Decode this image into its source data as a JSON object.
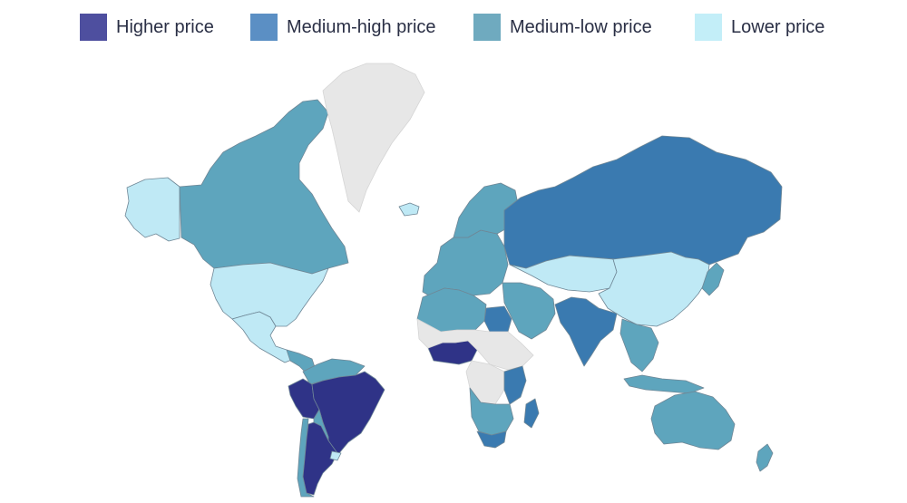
{
  "legend": [
    {
      "label": "Higher price",
      "color": "#4e4f9f"
    },
    {
      "label": "Medium-high price",
      "color": "#5b8fc4"
    },
    {
      "label": "Medium-low price",
      "color": "#6faabf"
    },
    {
      "label": "Lower price",
      "color": "#c3eef8"
    }
  ],
  "categories": {
    "higher": "#2f3387",
    "medium_high": "#3a7ab0",
    "medium_low": "#5ea5bd",
    "lower": "#bfe9f5",
    "no_data": "#e7e7e7"
  },
  "regions": [
    {
      "name": "Alaska",
      "category": "lower"
    },
    {
      "name": "Canada",
      "category": "medium_low"
    },
    {
      "name": "Greenland",
      "category": "no_data"
    },
    {
      "name": "United States",
      "category": "lower"
    },
    {
      "name": "Mexico",
      "category": "lower"
    },
    {
      "name": "Central America",
      "category": "medium_low"
    },
    {
      "name": "Colombia / Venezuela",
      "category": "medium_low"
    },
    {
      "name": "Peru",
      "category": "higher"
    },
    {
      "name": "Brazil",
      "category": "higher"
    },
    {
      "name": "Bolivia / Paraguay",
      "category": "medium_low"
    },
    {
      "name": "Chile",
      "category": "medium_low"
    },
    {
      "name": "Argentina",
      "category": "higher"
    },
    {
      "name": "Uruguay",
      "category": "lower"
    },
    {
      "name": "Iceland",
      "category": "lower"
    },
    {
      "name": "Europe",
      "category": "medium_low"
    },
    {
      "name": "Scandinavia",
      "category": "medium_low"
    },
    {
      "name": "Russia",
      "category": "medium_high"
    },
    {
      "name": "Kazakhstan / Central Asia",
      "category": "lower"
    },
    {
      "name": "China / Mongolia",
      "category": "lower"
    },
    {
      "name": "Middle East",
      "category": "medium_low"
    },
    {
      "name": "Egypt",
      "category": "medium_high"
    },
    {
      "name": "India",
      "category": "medium_high"
    },
    {
      "name": "Southeast Asia",
      "category": "medium_low"
    },
    {
      "name": "Japan",
      "category": "medium_low"
    },
    {
      "name": "Indonesia",
      "category": "medium_low"
    },
    {
      "name": "Australia",
      "category": "medium_low"
    },
    {
      "name": "New Zealand",
      "category": "medium_low"
    },
    {
      "name": "North Africa",
      "category": "medium_low"
    },
    {
      "name": "Nigeria",
      "category": "higher"
    },
    {
      "name": "Sahel / Horn",
      "category": "no_data"
    },
    {
      "name": "Central Africa",
      "category": "no_data"
    },
    {
      "name": "East Africa",
      "category": "medium_high"
    },
    {
      "name": "Southern Africa",
      "category": "medium_low"
    },
    {
      "name": "South Africa",
      "category": "medium_high"
    },
    {
      "name": "Madagascar",
      "category": "medium_high"
    }
  ]
}
